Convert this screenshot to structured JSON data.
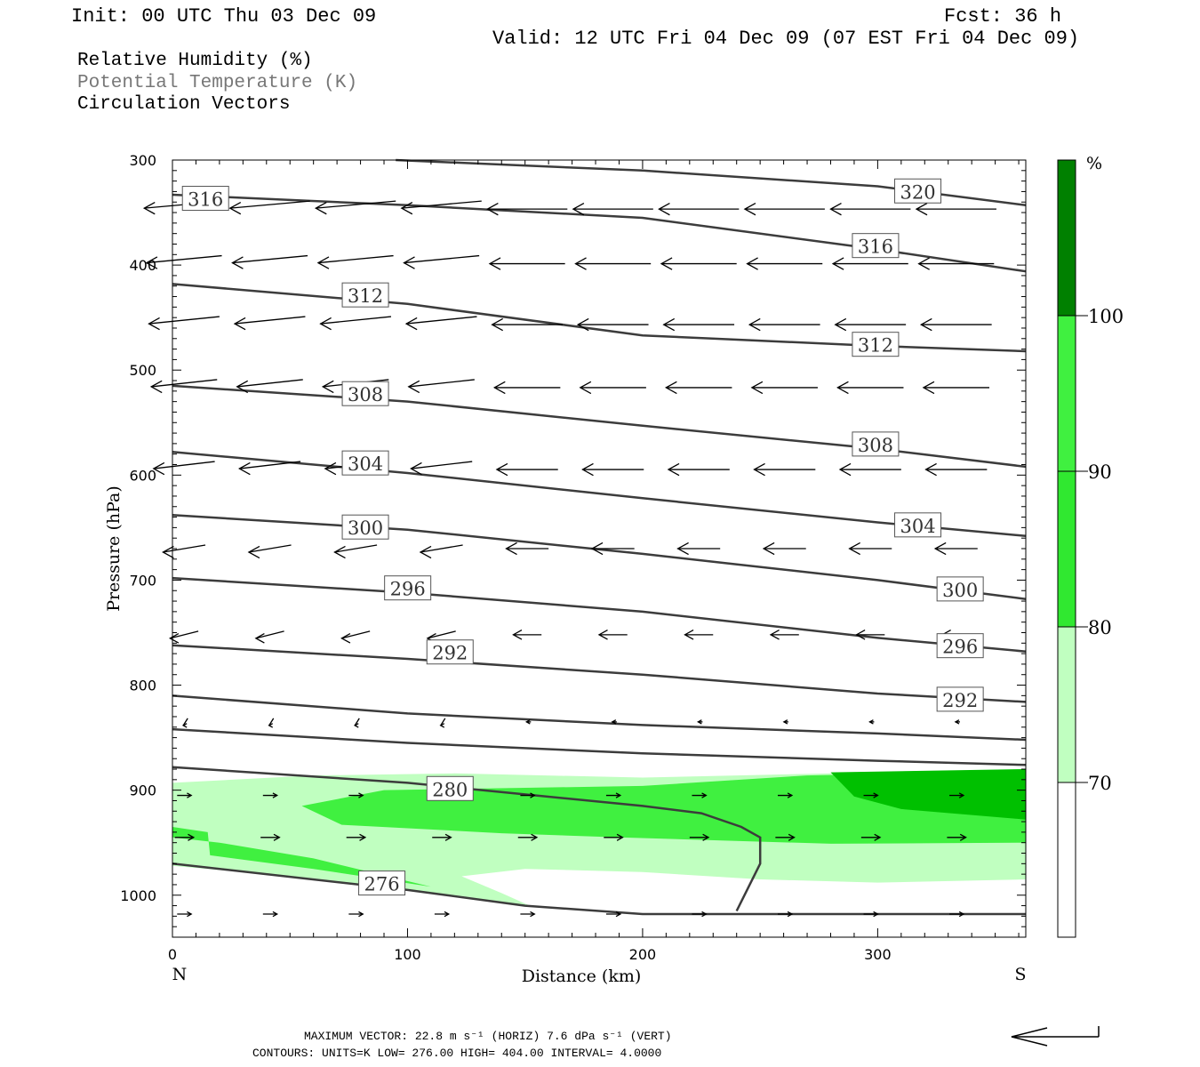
{
  "header": {
    "init": "Init: 00 UTC Thu 03 Dec 09",
    "fcst": "Fcst:   36 h",
    "valid": "Valid: 12 UTC Fri 04 Dec 09 (07 EST Fri 04 Dec 09)"
  },
  "legend": {
    "rh": "Relative Humidity (%)",
    "theta": "Potential Temperature (K)",
    "vectors": "Circulation Vectors"
  },
  "footer": {
    "max_vector": "MAXIMUM VECTOR:  22.8 m s⁻¹ (HORIZ)         7.6 dPa s⁻¹ (VERT)",
    "contours": "CONTOURS:  UNITS=K  LOW=   276.00       HIGH=   404.00       INTERVAL=     4.0000"
  },
  "colors": {
    "rh70": "#c0ffc0",
    "rh80": "#40f040",
    "rh90": "#00c000",
    "rh100": "#008000",
    "contour": "#3c3c3c"
  },
  "chart_data": {
    "type": "cross-section",
    "xlabel": "Distance (km)",
    "ylabel": "Pressure (hPa)",
    "xlim": [
      0,
      363
    ],
    "ylim": [
      1040,
      300
    ],
    "x_ticks": [
      0,
      100,
      200,
      300
    ],
    "y_ticks": [
      300,
      400,
      500,
      600,
      700,
      800,
      900,
      1000
    ],
    "endpoints": {
      "left": "N",
      "right": "S"
    },
    "colorbar": {
      "unit": "%",
      "levels": [
        70,
        80,
        90,
        100
      ]
    },
    "theta_contours": [
      {
        "label": "320",
        "points": [
          [
            95,
            300
          ],
          [
            200,
            310
          ],
          [
            300,
            325
          ],
          [
            363,
            343
          ]
        ],
        "label_at": [
          308,
          329
        ]
      },
      {
        "label": "316",
        "points": [
          [
            0,
            333
          ],
          [
            100,
            343
          ],
          [
            200,
            355
          ],
          [
            300,
            385
          ],
          [
            363,
            406
          ]
        ],
        "label_at": [
          5,
          336
        ]
      },
      {
        "label": "316",
        "points": [],
        "label_at": [
          290,
          381
        ]
      },
      {
        "label": "312",
        "points": [
          [
            0,
            418
          ],
          [
            100,
            437
          ],
          [
            200,
            467
          ],
          [
            300,
            477
          ],
          [
            363,
            482
          ]
        ],
        "label_at": [
          73,
          428
        ]
      },
      {
        "label": "312",
        "points": [],
        "label_at": [
          290,
          475
        ]
      },
      {
        "label": "308",
        "points": [
          [
            0,
            515
          ],
          [
            100,
            530
          ],
          [
            200,
            553
          ],
          [
            300,
            575
          ],
          [
            363,
            592
          ]
        ],
        "label_at": [
          73,
          522
        ]
      },
      {
        "label": "308",
        "points": [],
        "label_at": [
          290,
          570
        ]
      },
      {
        "label": "304",
        "points": [
          [
            0,
            578
          ],
          [
            100,
            598
          ],
          [
            200,
            622
          ],
          [
            300,
            645
          ],
          [
            363,
            658
          ]
        ],
        "label_at": [
          73,
          588
        ]
      },
      {
        "label": "304",
        "points": [],
        "label_at": [
          308,
          647
        ]
      },
      {
        "label": "300",
        "points": [
          [
            0,
            638
          ],
          [
            100,
            652
          ],
          [
            200,
            675
          ],
          [
            300,
            700
          ],
          [
            363,
            718
          ]
        ],
        "label_at": [
          73,
          649
        ]
      },
      {
        "label": "300",
        "points": [],
        "label_at": [
          326,
          708
        ]
      },
      {
        "label": "296",
        "points": [
          [
            0,
            698
          ],
          [
            100,
            712
          ],
          [
            200,
            730
          ],
          [
            300,
            755
          ],
          [
            363,
            768
          ]
        ],
        "label_at": [
          91,
          707
        ]
      },
      {
        "label": "296",
        "points": [],
        "label_at": [
          326,
          762
        ]
      },
      {
        "label": "292",
        "points": [
          [
            0,
            762
          ],
          [
            100,
            775
          ],
          [
            200,
            790
          ],
          [
            300,
            808
          ],
          [
            363,
            816
          ]
        ],
        "label_at": [
          109,
          768
        ]
      },
      {
        "label": "292",
        "points": [],
        "label_at": [
          326,
          813
        ]
      },
      {
        "label": "",
        "points": [
          [
            0,
            810
          ],
          [
            100,
            827
          ],
          [
            200,
            838
          ],
          [
            300,
            846
          ],
          [
            363,
            852
          ]
        ]
      },
      {
        "label": "",
        "points": [
          [
            0,
            842
          ],
          [
            100,
            855
          ],
          [
            200,
            865
          ],
          [
            300,
            872
          ],
          [
            363,
            876
          ]
        ]
      },
      {
        "label": "",
        "points": [
          [
            0,
            878
          ],
          [
            100,
            893
          ],
          [
            200,
            915
          ],
          [
            225,
            922
          ],
          [
            242,
            935
          ],
          [
            250,
            945
          ],
          [
            250,
            970
          ],
          [
            240,
            1015
          ]
        ]
      },
      {
        "label": "280",
        "points": [],
        "label_at": [
          109,
          898
        ]
      },
      {
        "label": "",
        "points": [
          [
            0,
            970
          ],
          [
            100,
            995
          ],
          [
            150,
            1010
          ],
          [
            200,
            1018
          ],
          [
            363,
            1018
          ]
        ]
      },
      {
        "label": "276",
        "points": [],
        "label_at": [
          80,
          988
        ]
      }
    ]
  }
}
